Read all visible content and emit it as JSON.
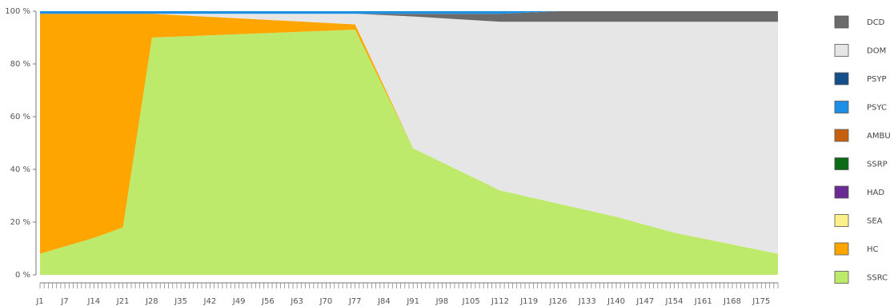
{
  "chart_data": {
    "type": "area",
    "stacked_percent": true,
    "y_ticks": [
      "0 %",
      "20 %",
      "40 %",
      "60 %",
      "80 %",
      "100 %"
    ],
    "ylim": [
      0,
      100
    ],
    "x_tick_labels": [
      "J1",
      "J7",
      "J14",
      "J21",
      "J28",
      "J35",
      "J42",
      "J49",
      "J56",
      "J63",
      "J70",
      "J77",
      "J84",
      "J91",
      "J98",
      "J105",
      "J112",
      "J119",
      "J126",
      "J133",
      "J140",
      "J147",
      "J154",
      "J161",
      "J168",
      "J175"
    ],
    "x_range": [
      1,
      179
    ],
    "grid": false,
    "legend_position": "right",
    "series": [
      {
        "name": "DCD",
        "color": "#6b6b6b"
      },
      {
        "name": "DOM",
        "color": "#e6e6e6"
      },
      {
        "name": "PSYP",
        "color": "#154f8a"
      },
      {
        "name": "PSYC",
        "color": "#1f8fe6"
      },
      {
        "name": "AMBU",
        "color": "#c7600e"
      },
      {
        "name": "SSRP",
        "color": "#0b6b16"
      },
      {
        "name": "HAD",
        "color": "#6a2c93"
      },
      {
        "name": "SEA",
        "color": "#fbf08a"
      },
      {
        "name": "HC",
        "color": "#ffa500"
      },
      {
        "name": "SSRC",
        "color": "#bdea6a"
      }
    ],
    "composition_points": [
      {
        "day": 1,
        "SSRC": 8,
        "HC": 91,
        "PSYC": 1,
        "DOM": 0,
        "DCD": 0
      },
      {
        "day": 14,
        "SSRC": 14,
        "HC": 85,
        "PSYC": 1,
        "DOM": 0,
        "DCD": 0
      },
      {
        "day": 21,
        "SSRC": 18,
        "HC": 81,
        "PSYC": 1,
        "DOM": 0,
        "DCD": 0
      },
      {
        "day": 28,
        "SSRC": 90,
        "HC": 9,
        "PSYC": 1,
        "DOM": 0,
        "DCD": 0
      },
      {
        "day": 77,
        "SSRC": 93,
        "HC": 2,
        "PSYC": 1,
        "DOM": 4,
        "DCD": 0
      },
      {
        "day": 91,
        "SSRC": 48,
        "HC": 0,
        "PSYC": 1,
        "DOM": 50,
        "DCD": 1
      },
      {
        "day": 112,
        "SSRC": 32,
        "HC": 0,
        "PSYC": 1,
        "DOM": 64,
        "DCD": 3
      },
      {
        "day": 126,
        "SSRC": 27,
        "HC": 0,
        "PSYC": 0,
        "DOM": 69,
        "DCD": 4
      },
      {
        "day": 140,
        "SSRC": 22,
        "HC": 0,
        "PSYC": 0,
        "DOM": 74,
        "DCD": 4
      },
      {
        "day": 154,
        "SSRC": 16,
        "HC": 0,
        "PSYC": 0,
        "DOM": 80,
        "DCD": 4
      },
      {
        "day": 179,
        "SSRC": 8,
        "HC": 0,
        "PSYC": 0,
        "DOM": 88,
        "DCD": 4
      }
    ]
  }
}
